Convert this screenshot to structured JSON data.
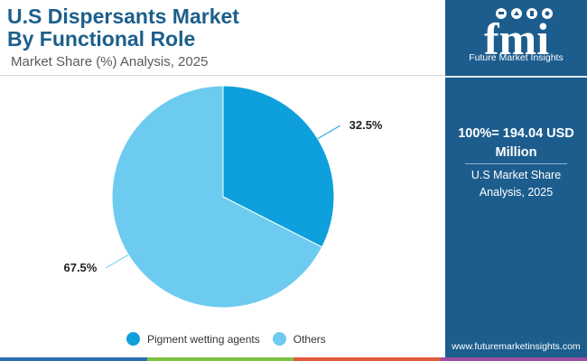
{
  "header": {
    "title_line1": "U.S Dispersants Market",
    "title_line2": "By Functional Role",
    "subtitle": "Market Share (%) Analysis, 2025"
  },
  "chart_data": {
    "type": "pie",
    "title": "U.S Dispersants Market By Functional Role",
    "subtitle": "Market Share (%) Analysis, 2025",
    "categories": [
      "Pigment wetting agents",
      "Others"
    ],
    "values": [
      32.5,
      67.5
    ],
    "value_labels": [
      "32.5%",
      "67.5%"
    ],
    "colors": [
      "#0ea0dc",
      "#6dcbf0"
    ],
    "start_angle": "12 o'clock",
    "direction": "clockwise",
    "legend_position": "bottom"
  },
  "panel": {
    "logo_text": "fmi",
    "logo_caption": "Future Market Insights",
    "total_line1": "100%= 194.04 USD",
    "total_line2": "Million",
    "caption_line1": "U.S Market Share",
    "caption_line2": "Analysis, 2025",
    "website": "www.futuremarketinsights.com"
  },
  "colors": {
    "title": "#1c5f8c",
    "panel_background": "#1d5d8e",
    "bottom_bar": [
      "#2a6fb0",
      "#7dc242",
      "#e25a3c",
      "#9a4fa0"
    ]
  }
}
